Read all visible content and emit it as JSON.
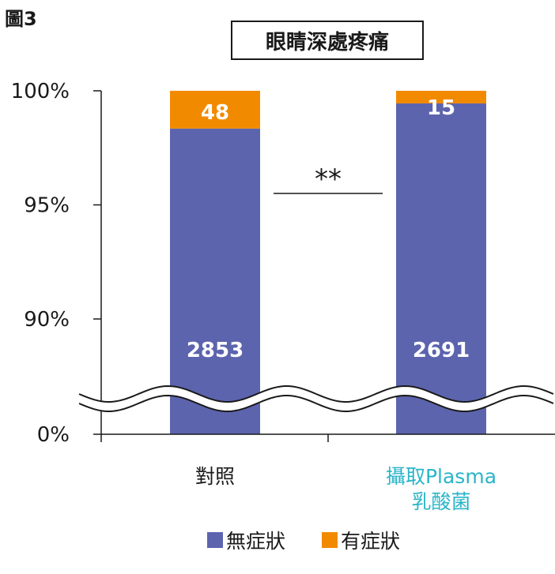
{
  "figure_label": "圖3",
  "colors": {
    "asymptomatic": "#5c64ae",
    "symptomatic": "#f28a00",
    "highlight_category": "#2bb5c9"
  },
  "chart_data": {
    "type": "bar",
    "stacked": true,
    "percent_stacked": true,
    "broken_axis": true,
    "title": "眼睛深處疼痛",
    "categories": [
      "對照",
      "攝取Plasma\n乳酸菌"
    ],
    "category_lines": [
      [
        "對照"
      ],
      [
        "攝取Plasma",
        "乳酸菌"
      ]
    ],
    "series": [
      {
        "name": "無症狀",
        "values": [
          2853,
          2691
        ]
      },
      {
        "name": "有症狀",
        "values": [
          48,
          15
        ]
      }
    ],
    "y_ticks": [
      "0%",
      "90%",
      "95%",
      "100%"
    ],
    "ylim_upper_segment": [
      90,
      100
    ],
    "significance": "**",
    "legend_position": "bottom",
    "grid": false
  }
}
